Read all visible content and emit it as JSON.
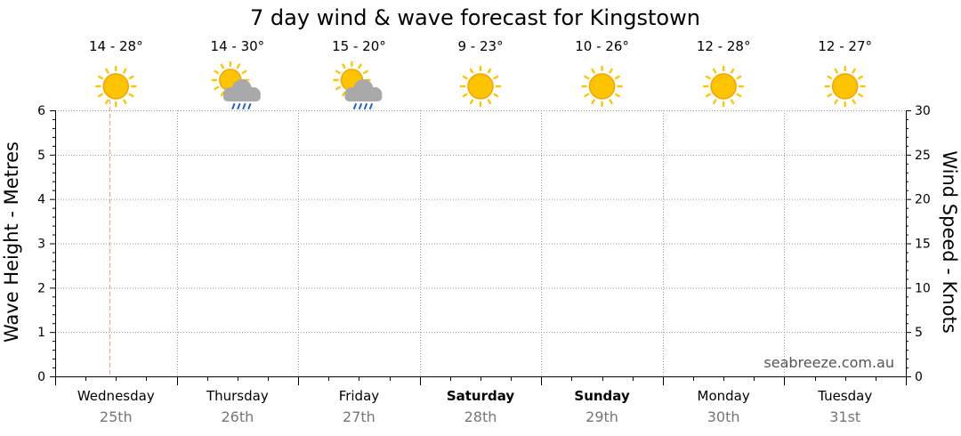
{
  "chart_data": {
    "type": "line",
    "title": "7 day wind & wave forecast for Kingstown",
    "ylabel_left": "Wave Height - Metres",
    "ylabel_right": "Wind Speed - Knots",
    "ylim_left": [
      0,
      6
    ],
    "ylim_right": [
      0,
      30
    ],
    "yticks_left": [
      "0",
      "1",
      "2",
      "3",
      "4",
      "5",
      "6"
    ],
    "yticks_right": [
      "0",
      "5",
      "10",
      "15",
      "20",
      "25",
      "30"
    ],
    "grid": true,
    "days": [
      {
        "day": "Wednesday",
        "date": "25th",
        "temp": "14 - 28°",
        "icon": "sun-icon",
        "bold": false
      },
      {
        "day": "Thursday",
        "date": "26th",
        "temp": "14 - 30°",
        "icon": "sun-cloud-rain-icon",
        "bold": false
      },
      {
        "day": "Friday",
        "date": "27th",
        "temp": "15 - 20°",
        "icon": "sun-cloud-rain-icon",
        "bold": false
      },
      {
        "day": "Saturday",
        "date": "28th",
        "temp": "9 - 23°",
        "icon": "sun-icon",
        "bold": true
      },
      {
        "day": "Sunday",
        "date": "29th",
        "temp": "10 - 26°",
        "icon": "sun-icon",
        "bold": true
      },
      {
        "day": "Monday",
        "date": "30th",
        "temp": "12 - 28°",
        "icon": "sun-icon",
        "bold": false
      },
      {
        "day": "Tuesday",
        "date": "31st",
        "temp": "12 - 27°",
        "icon": "sun-icon",
        "bold": false
      }
    ],
    "series": [],
    "current_time_marker": "Wednesday 25th",
    "watermark": "seabreeze.com.au"
  },
  "colors": {
    "sun": "#FFC400",
    "sun_ring": "#F5A300",
    "cloud": "#A9A9A9",
    "rain": "#1E64C8",
    "grid": "#9a9a9a",
    "now_marker": "#E8A088"
  }
}
